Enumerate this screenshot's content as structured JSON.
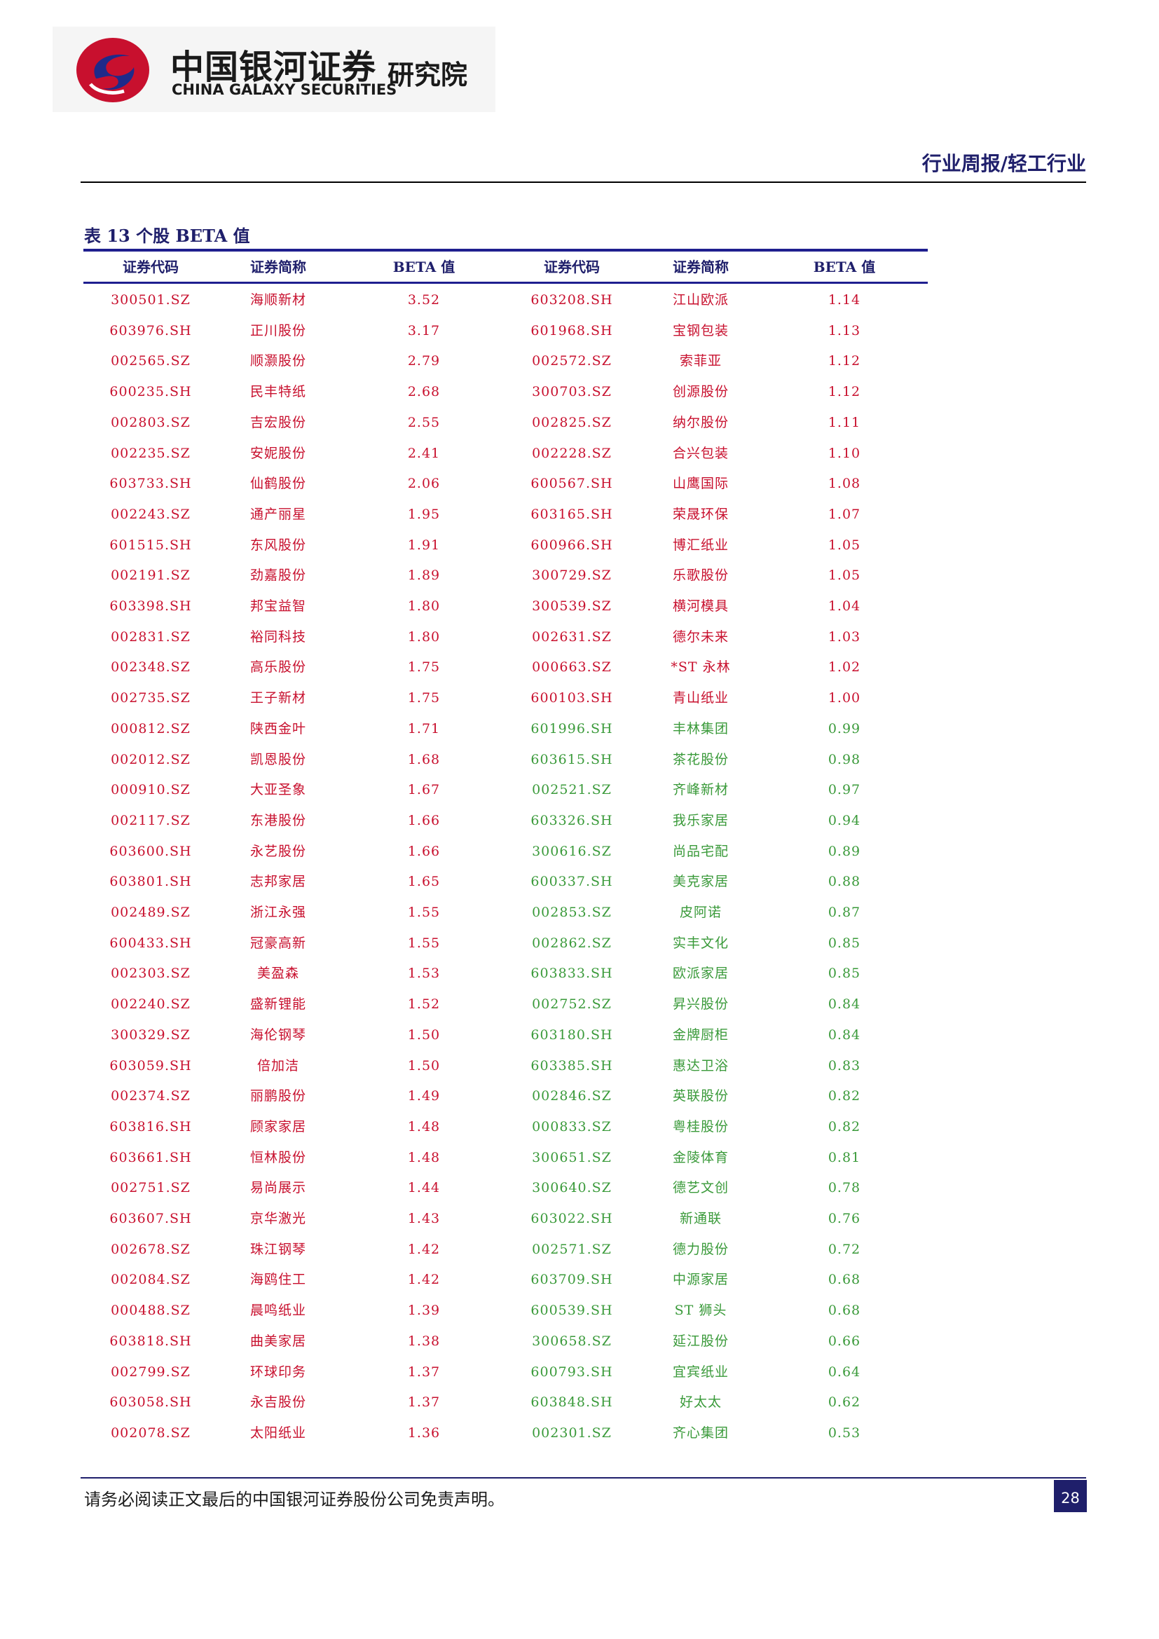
{
  "header": {
    "logo_cn": "中国银河证券",
    "logo_en": "CHINA GALAXY SECURITIES",
    "logo_institute": "研究院",
    "report_type": "行业周报/轻工行业"
  },
  "table": {
    "title": "表 13 个股 BETA 值",
    "columns": [
      "证券代码",
      "证券简称",
      "BETA 值",
      "证券代码",
      "证券简称",
      "BETA 值"
    ],
    "colors": {
      "red": "#c8102e",
      "green": "#3a9a3a"
    },
    "rows": [
      [
        [
          "300501.SZ",
          "海顺新材",
          "3.52",
          "red"
        ],
        [
          "603208.SH",
          "江山欧派",
          "1.14",
          "red"
        ]
      ],
      [
        [
          "603976.SH",
          "正川股份",
          "3.17",
          "red"
        ],
        [
          "601968.SH",
          "宝钢包装",
          "1.13",
          "red"
        ]
      ],
      [
        [
          "002565.SZ",
          "顺灏股份",
          "2.79",
          "red"
        ],
        [
          "002572.SZ",
          "索菲亚",
          "1.12",
          "red"
        ]
      ],
      [
        [
          "600235.SH",
          "民丰特纸",
          "2.68",
          "red"
        ],
        [
          "300703.SZ",
          "创源股份",
          "1.12",
          "red"
        ]
      ],
      [
        [
          "002803.SZ",
          "吉宏股份",
          "2.55",
          "red"
        ],
        [
          "002825.SZ",
          "纳尔股份",
          "1.11",
          "red"
        ]
      ],
      [
        [
          "002235.SZ",
          "安妮股份",
          "2.41",
          "red"
        ],
        [
          "002228.SZ",
          "合兴包装",
          "1.10",
          "red"
        ]
      ],
      [
        [
          "603733.SH",
          "仙鹤股份",
          "2.06",
          "red"
        ],
        [
          "600567.SH",
          "山鹰国际",
          "1.08",
          "red"
        ]
      ],
      [
        [
          "002243.SZ",
          "通产丽星",
          "1.95",
          "red"
        ],
        [
          "603165.SH",
          "荣晟环保",
          "1.07",
          "red"
        ]
      ],
      [
        [
          "601515.SH",
          "东风股份",
          "1.91",
          "red"
        ],
        [
          "600966.SH",
          "博汇纸业",
          "1.05",
          "red"
        ]
      ],
      [
        [
          "002191.SZ",
          "劲嘉股份",
          "1.89",
          "red"
        ],
        [
          "300729.SZ",
          "乐歌股份",
          "1.05",
          "red"
        ]
      ],
      [
        [
          "603398.SH",
          "邦宝益智",
          "1.80",
          "red"
        ],
        [
          "300539.SZ",
          "横河模具",
          "1.04",
          "red"
        ]
      ],
      [
        [
          "002831.SZ",
          "裕同科技",
          "1.80",
          "red"
        ],
        [
          "002631.SZ",
          "德尔未来",
          "1.03",
          "red"
        ]
      ],
      [
        [
          "002348.SZ",
          "高乐股份",
          "1.75",
          "red"
        ],
        [
          "000663.SZ",
          "*ST 永林",
          "1.02",
          "red"
        ]
      ],
      [
        [
          "002735.SZ",
          "王子新材",
          "1.75",
          "red"
        ],
        [
          "600103.SH",
          "青山纸业",
          "1.00",
          "red"
        ]
      ],
      [
        [
          "000812.SZ",
          "陕西金叶",
          "1.71",
          "red"
        ],
        [
          "601996.SH",
          "丰林集团",
          "0.99",
          "green"
        ]
      ],
      [
        [
          "002012.SZ",
          "凯恩股份",
          "1.68",
          "red"
        ],
        [
          "603615.SH",
          "茶花股份",
          "0.98",
          "green"
        ]
      ],
      [
        [
          "000910.SZ",
          "大亚圣象",
          "1.67",
          "red"
        ],
        [
          "002521.SZ",
          "齐峰新材",
          "0.97",
          "green"
        ]
      ],
      [
        [
          "002117.SZ",
          "东港股份",
          "1.66",
          "red"
        ],
        [
          "603326.SH",
          "我乐家居",
          "0.94",
          "green"
        ]
      ],
      [
        [
          "603600.SH",
          "永艺股份",
          "1.66",
          "red"
        ],
        [
          "300616.SZ",
          "尚品宅配",
          "0.89",
          "green"
        ]
      ],
      [
        [
          "603801.SH",
          "志邦家居",
          "1.65",
          "red"
        ],
        [
          "600337.SH",
          "美克家居",
          "0.88",
          "green"
        ]
      ],
      [
        [
          "002489.SZ",
          "浙江永强",
          "1.55",
          "red"
        ],
        [
          "002853.SZ",
          "皮阿诺",
          "0.87",
          "green"
        ]
      ],
      [
        [
          "600433.SH",
          "冠豪高新",
          "1.55",
          "red"
        ],
        [
          "002862.SZ",
          "实丰文化",
          "0.85",
          "green"
        ]
      ],
      [
        [
          "002303.SZ",
          "美盈森",
          "1.53",
          "red"
        ],
        [
          "603833.SH",
          "欧派家居",
          "0.85",
          "green"
        ]
      ],
      [
        [
          "002240.SZ",
          "盛新锂能",
          "1.52",
          "red"
        ],
        [
          "002752.SZ",
          "昇兴股份",
          "0.84",
          "green"
        ]
      ],
      [
        [
          "300329.SZ",
          "海伦钢琴",
          "1.50",
          "red"
        ],
        [
          "603180.SH",
          "金牌厨柜",
          "0.84",
          "green"
        ]
      ],
      [
        [
          "603059.SH",
          "倍加洁",
          "1.50",
          "red"
        ],
        [
          "603385.SH",
          "惠达卫浴",
          "0.83",
          "green"
        ]
      ],
      [
        [
          "002374.SZ",
          "丽鹏股份",
          "1.49",
          "red"
        ],
        [
          "002846.SZ",
          "英联股份",
          "0.82",
          "green"
        ]
      ],
      [
        [
          "603816.SH",
          "顾家家居",
          "1.48",
          "red"
        ],
        [
          "000833.SZ",
          "粤桂股份",
          "0.82",
          "green"
        ]
      ],
      [
        [
          "603661.SH",
          "恒林股份",
          "1.48",
          "red"
        ],
        [
          "300651.SZ",
          "金陵体育",
          "0.81",
          "green"
        ]
      ],
      [
        [
          "002751.SZ",
          "易尚展示",
          "1.44",
          "red"
        ],
        [
          "300640.SZ",
          "德艺文创",
          "0.78",
          "green"
        ]
      ],
      [
        [
          "603607.SH",
          "京华激光",
          "1.43",
          "red"
        ],
        [
          "603022.SH",
          "新通联",
          "0.76",
          "green"
        ]
      ],
      [
        [
          "002678.SZ",
          "珠江钢琴",
          "1.42",
          "red"
        ],
        [
          "002571.SZ",
          "德力股份",
          "0.72",
          "green"
        ]
      ],
      [
        [
          "002084.SZ",
          "海鸥住工",
          "1.42",
          "red"
        ],
        [
          "603709.SH",
          "中源家居",
          "0.68",
          "green"
        ]
      ],
      [
        [
          "000488.SZ",
          "晨鸣纸业",
          "1.39",
          "red"
        ],
        [
          "600539.SH",
          "ST 狮头",
          "0.68",
          "green"
        ]
      ],
      [
        [
          "603818.SH",
          "曲美家居",
          "1.38",
          "red"
        ],
        [
          "300658.SZ",
          "延江股份",
          "0.66",
          "green"
        ]
      ],
      [
        [
          "002799.SZ",
          "环球印务",
          "1.37",
          "red"
        ],
        [
          "600793.SH",
          "宜宾纸业",
          "0.64",
          "green"
        ]
      ],
      [
        [
          "603058.SH",
          "永吉股份",
          "1.37",
          "red"
        ],
        [
          "603848.SH",
          "好太太",
          "0.62",
          "green"
        ]
      ],
      [
        [
          "002078.SZ",
          "太阳纸业",
          "1.36",
          "red"
        ],
        [
          "002301.SZ",
          "齐心集团",
          "0.53",
          "green"
        ]
      ]
    ]
  },
  "footer": {
    "disclaimer": "请务必阅读正文最后的中国银河证券股份公司免责声明。",
    "page_number": "28"
  }
}
